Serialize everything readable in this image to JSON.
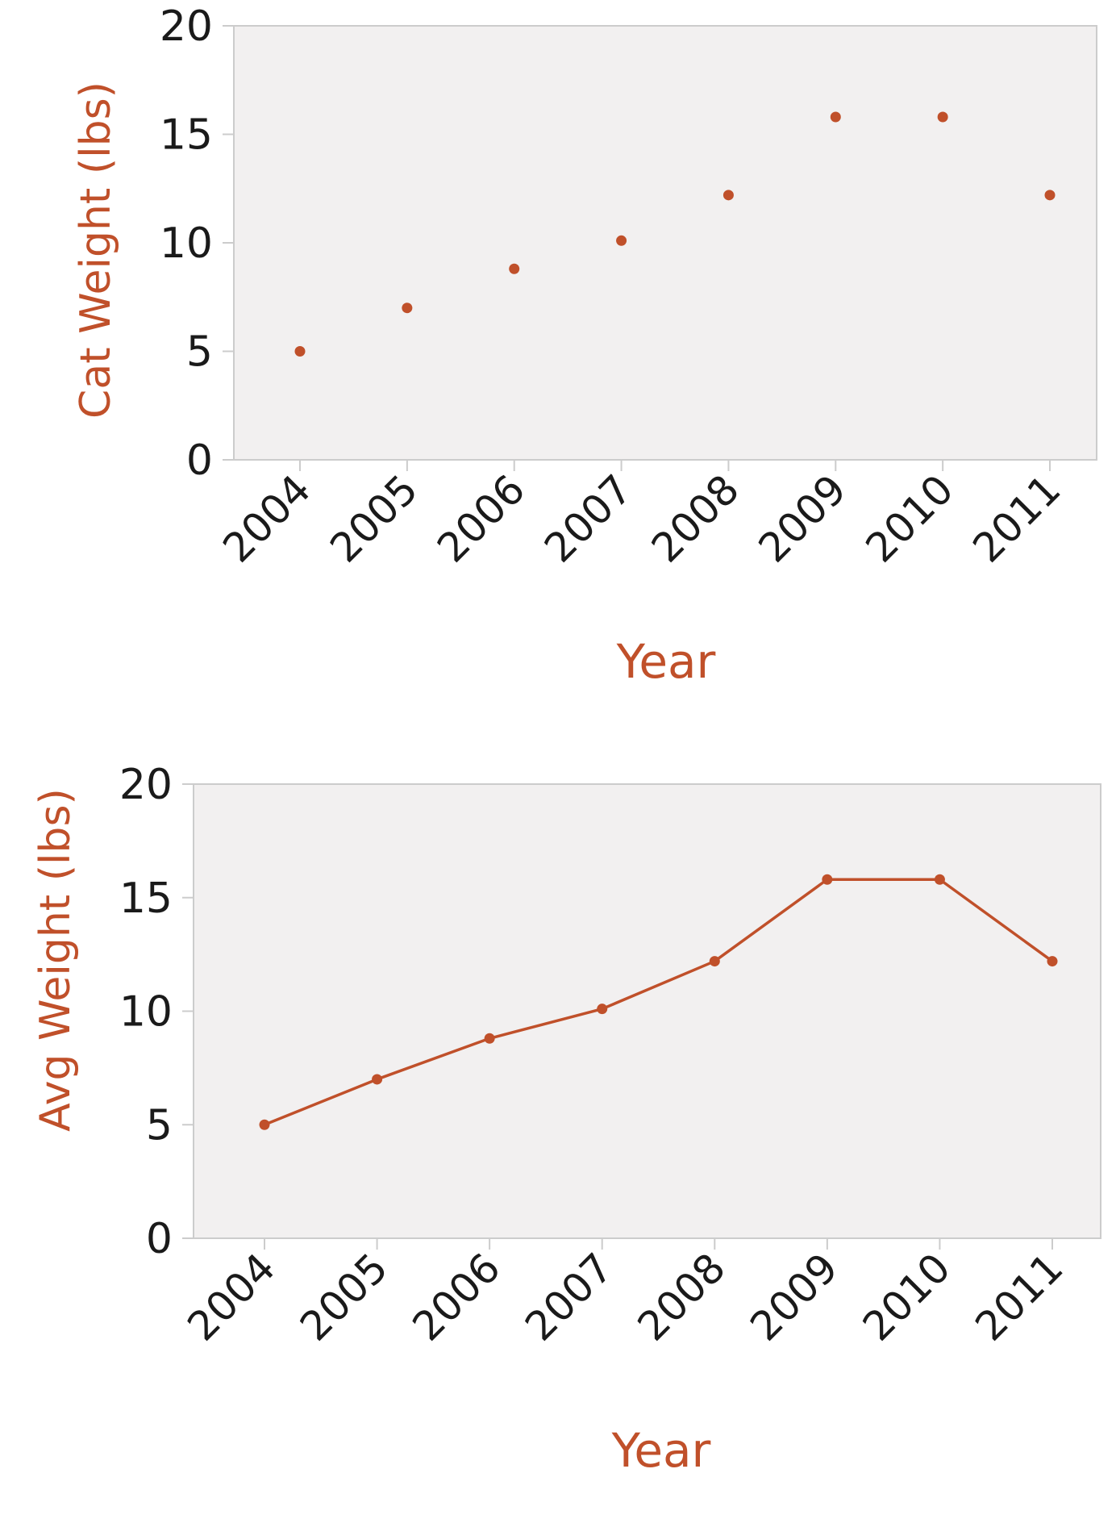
{
  "colors": {
    "accent": "#c0502a",
    "plot_background": "#f2f0f0",
    "axis": "#cccccc",
    "tick_label": "#1a1a1a"
  },
  "chart_data": [
    {
      "type": "scatter",
      "xlabel": "Year",
      "ylabel": "Cat Weight (lbs)",
      "x": [
        "2004",
        "2005",
        "2006",
        "2007",
        "2008",
        "2009",
        "2010",
        "2011"
      ],
      "values": [
        5,
        7,
        8.8,
        10.1,
        12.2,
        15.8,
        15.8,
        12.2
      ],
      "ylim": [
        0,
        20
      ],
      "yticks": [
        0,
        5,
        10,
        15,
        20
      ],
      "grid": false,
      "legend": false
    },
    {
      "type": "line",
      "xlabel": "Year",
      "ylabel": "Avg Weight (lbs)",
      "x": [
        "2004",
        "2005",
        "2006",
        "2007",
        "2008",
        "2009",
        "2010",
        "2011"
      ],
      "values": [
        5,
        7,
        8.8,
        10.1,
        12.2,
        15.8,
        15.8,
        12.2
      ],
      "ylim": [
        0,
        20
      ],
      "yticks": [
        0,
        5,
        10,
        15,
        20
      ],
      "grid": false,
      "legend": false
    }
  ]
}
